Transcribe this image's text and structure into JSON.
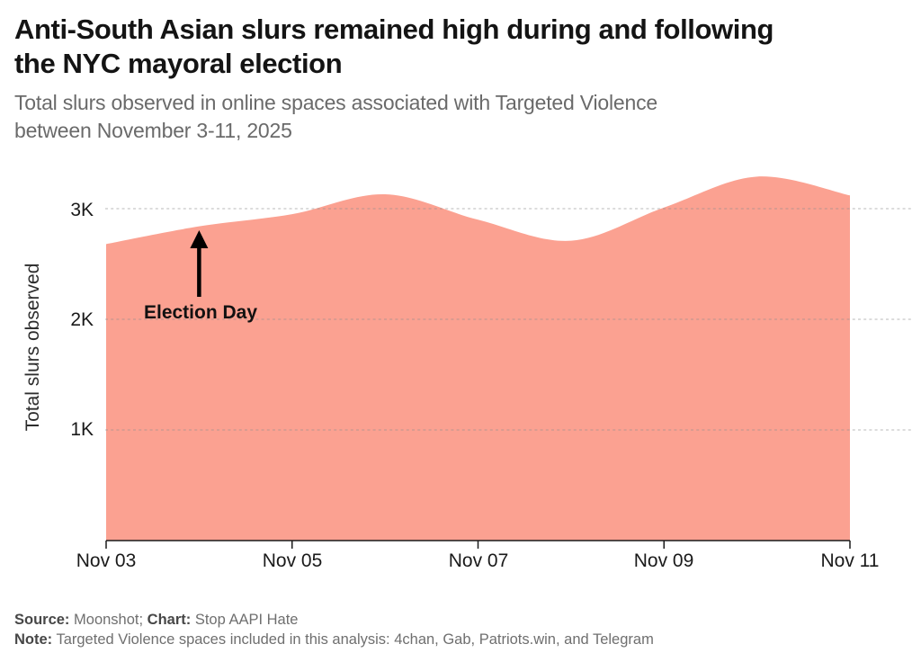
{
  "header": {
    "title_lines": [
      "Anti-South Asian slurs remained high during and following",
      "the NYC mayoral election"
    ],
    "subtitle_lines": [
      "Total slurs observed in online spaces associated with Targeted Violence",
      "between November 3-11, 2025"
    ]
  },
  "chart_data": {
    "type": "area",
    "title": "Anti-South Asian slurs remained high during and following the NYC mayoral election",
    "subtitle": "Total slurs observed in online spaces associated with Targeted Violence between November 3-11, 2025",
    "x": [
      "Nov 03",
      "Nov 04",
      "Nov 05",
      "Nov 06",
      "Nov 07",
      "Nov 08",
      "Nov 09",
      "Nov 10",
      "Nov 11"
    ],
    "values": [
      2680,
      2840,
      2950,
      3130,
      2900,
      2710,
      3010,
      3290,
      3120
    ],
    "xlabel": "",
    "ylabel": "Total slurs observed",
    "ylim": [
      0,
      3400
    ],
    "grid": "horizontal-dashed",
    "legend_position": "none",
    "y_ticks": [
      {
        "label": "1K",
        "value": 1000
      },
      {
        "label": "2K",
        "value": 2000
      },
      {
        "label": "3K",
        "value": 3000
      }
    ],
    "x_tick_labels": [
      "Nov 03",
      "Nov 05",
      "Nov 07",
      "Nov 09",
      "Nov 11"
    ],
    "annotation": {
      "text": "Election Day",
      "x": "Nov 04"
    },
    "colors": {
      "area_fill": "#FBA191",
      "gridline": "#8f8f8f",
      "axis_line": "#1a1a1a",
      "annotation_arrow": "#000000"
    }
  },
  "footer": {
    "source_label": "Source:",
    "source_value": " Moonshot; ",
    "chart_label": "Chart:",
    "chart_value": " Stop AAPI Hate",
    "note_label": "Note:",
    "note_value": " Targeted Violence spaces included in this analysis: 4chan, Gab, Patriots.win, and Telegram"
  }
}
